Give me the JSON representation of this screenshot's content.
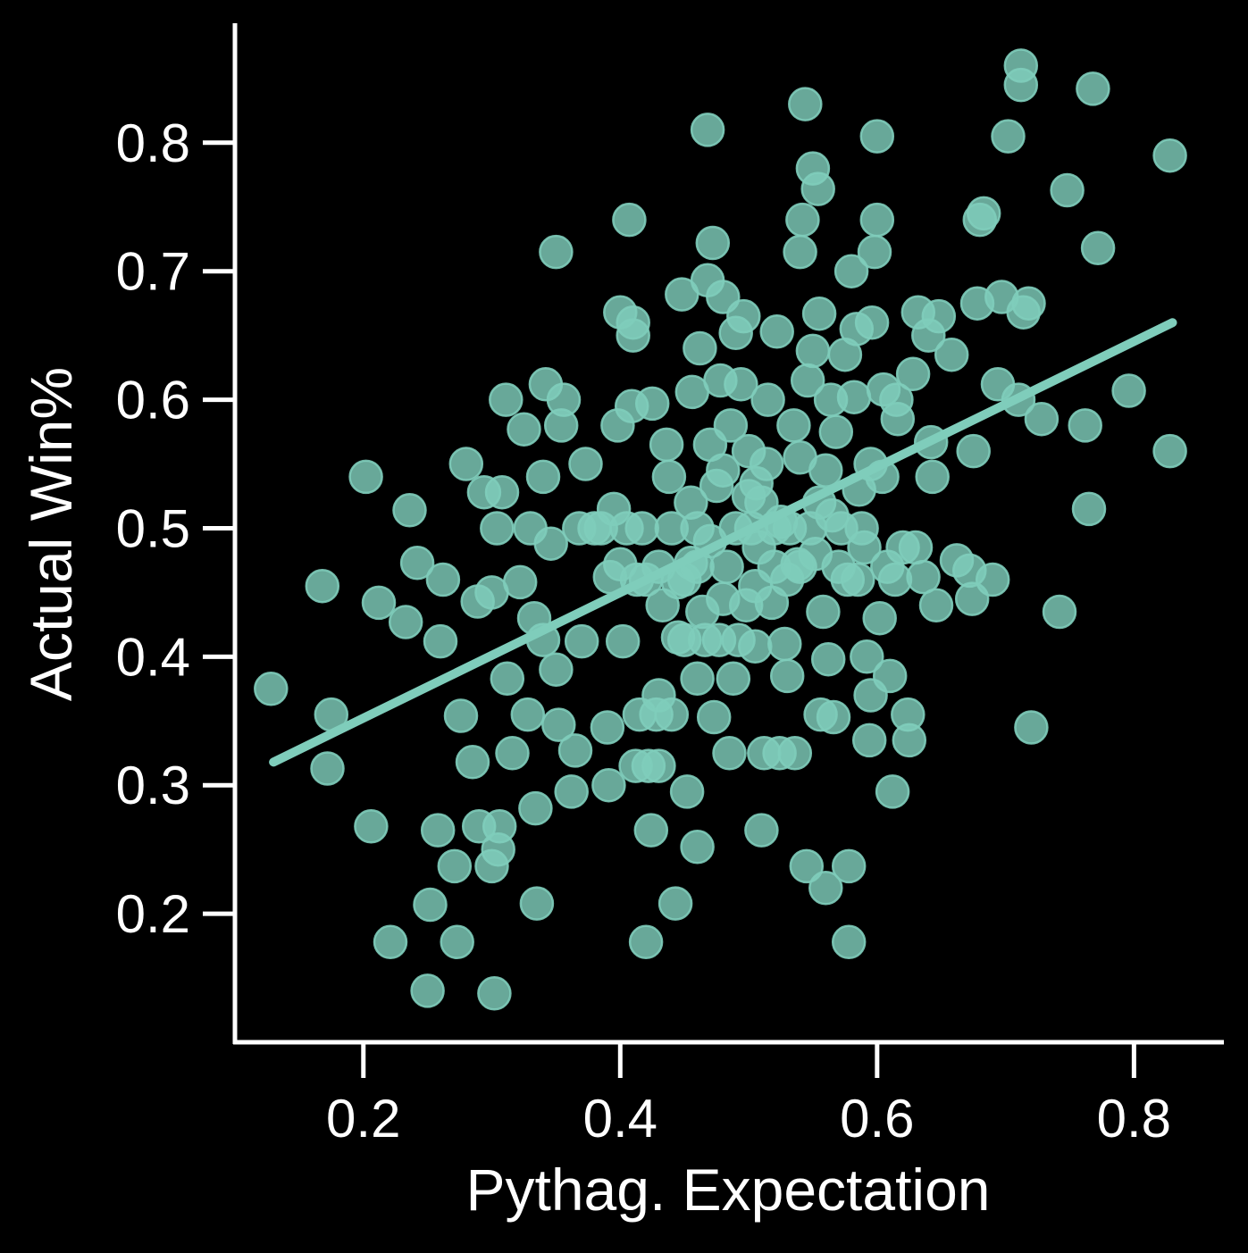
{
  "chart_data": {
    "type": "scatter",
    "title": "",
    "xlabel": "Pythag. Expectation",
    "ylabel": "Actual Win%",
    "xlim": [
      0.1,
      0.87
    ],
    "ylim": [
      0.1,
      0.893
    ],
    "xticks": [
      0.2,
      0.4,
      0.6,
      0.8
    ],
    "xtick_labels": [
      "0.2",
      "0.4",
      "0.6",
      "0.8"
    ],
    "yticks": [
      0.2,
      0.3,
      0.4,
      0.5,
      0.6,
      0.7,
      0.8
    ],
    "ytick_labels": [
      "0.2",
      "0.3",
      "0.4",
      "0.5",
      "0.6",
      "0.7",
      "0.8"
    ],
    "grid": false,
    "colors": {
      "background": "#000000",
      "axes": "#ffffff",
      "points": "#7fcdbb",
      "fit_line": "#7fcdbb"
    },
    "trendline": {
      "x": [
        0.13,
        0.83
      ],
      "y": [
        0.318,
        0.66
      ]
    },
    "series": [
      {
        "name": "teams",
        "points": [
          [
            0.128,
            0.375
          ],
          [
            0.168,
            0.455
          ],
          [
            0.175,
            0.355
          ],
          [
            0.172,
            0.313
          ],
          [
            0.202,
            0.54
          ],
          [
            0.206,
            0.268
          ],
          [
            0.212,
            0.442
          ],
          [
            0.221,
            0.178
          ],
          [
            0.233,
            0.427
          ],
          [
            0.236,
            0.514
          ],
          [
            0.242,
            0.473
          ],
          [
            0.252,
            0.207
          ],
          [
            0.25,
            0.14
          ],
          [
            0.258,
            0.265
          ],
          [
            0.26,
            0.412
          ],
          [
            0.262,
            0.46
          ],
          [
            0.271,
            0.237
          ],
          [
            0.273,
            0.178
          ],
          [
            0.276,
            0.354
          ],
          [
            0.28,
            0.55
          ],
          [
            0.285,
            0.318
          ],
          [
            0.289,
            0.443
          ],
          [
            0.29,
            0.268
          ],
          [
            0.294,
            0.528
          ],
          [
            0.3,
            0.45
          ],
          [
            0.3,
            0.237
          ],
          [
            0.302,
            0.138
          ],
          [
            0.304,
            0.5
          ],
          [
            0.305,
            0.25
          ],
          [
            0.306,
            0.268
          ],
          [
            0.308,
            0.528
          ],
          [
            0.311,
            0.6
          ],
          [
            0.312,
            0.383
          ],
          [
            0.316,
            0.325
          ],
          [
            0.322,
            0.458
          ],
          [
            0.325,
            0.577
          ],
          [
            0.328,
            0.355
          ],
          [
            0.33,
            0.5
          ],
          [
            0.333,
            0.43
          ],
          [
            0.334,
            0.282
          ],
          [
            0.335,
            0.208
          ],
          [
            0.34,
            0.413
          ],
          [
            0.34,
            0.54
          ],
          [
            0.342,
            0.612
          ],
          [
            0.346,
            0.488
          ],
          [
            0.35,
            0.39
          ],
          [
            0.35,
            0.715
          ],
          [
            0.352,
            0.347
          ],
          [
            0.354,
            0.58
          ],
          [
            0.356,
            0.6
          ],
          [
            0.362,
            0.295
          ],
          [
            0.365,
            0.327
          ],
          [
            0.368,
            0.5
          ],
          [
            0.37,
            0.412
          ],
          [
            0.373,
            0.55
          ],
          [
            0.38,
            0.5
          ],
          [
            0.385,
            0.5
          ],
          [
            0.39,
            0.345
          ],
          [
            0.391,
            0.3
          ],
          [
            0.392,
            0.462
          ],
          [
            0.395,
            0.515
          ],
          [
            0.398,
            0.58
          ],
          [
            0.4,
            0.668
          ],
          [
            0.4,
            0.472
          ],
          [
            0.402,
            0.412
          ],
          [
            0.405,
            0.5
          ],
          [
            0.407,
            0.74
          ],
          [
            0.409,
            0.595
          ],
          [
            0.41,
            0.66
          ],
          [
            0.41,
            0.65
          ],
          [
            0.412,
            0.315
          ],
          [
            0.413,
            0.46
          ],
          [
            0.415,
            0.355
          ],
          [
            0.417,
            0.5
          ],
          [
            0.42,
            0.46
          ],
          [
            0.42,
            0.178
          ],
          [
            0.422,
            0.315
          ],
          [
            0.424,
            0.265
          ],
          [
            0.425,
            0.597
          ],
          [
            0.428,
            0.355
          ],
          [
            0.43,
            0.37
          ],
          [
            0.43,
            0.47
          ],
          [
            0.43,
            0.315
          ],
          [
            0.433,
            0.44
          ],
          [
            0.436,
            0.565
          ],
          [
            0.438,
            0.54
          ],
          [
            0.44,
            0.355
          ],
          [
            0.44,
            0.5
          ],
          [
            0.443,
            0.208
          ],
          [
            0.445,
            0.458
          ],
          [
            0.448,
            0.682
          ],
          [
            0.45,
            0.413
          ],
          [
            0.45,
            0.46
          ],
          [
            0.452,
            0.295
          ],
          [
            0.455,
            0.473
          ],
          [
            0.456,
            0.606
          ],
          [
            0.46,
            0.5
          ],
          [
            0.46,
            0.252
          ],
          [
            0.46,
            0.383
          ],
          [
            0.462,
            0.64
          ],
          [
            0.464,
            0.435
          ],
          [
            0.466,
            0.413
          ],
          [
            0.468,
            0.81
          ],
          [
            0.468,
            0.693
          ],
          [
            0.47,
            0.565
          ],
          [
            0.472,
            0.722
          ],
          [
            0.473,
            0.353
          ],
          [
            0.475,
            0.533
          ],
          [
            0.477,
            0.413
          ],
          [
            0.478,
            0.615
          ],
          [
            0.48,
            0.545
          ],
          [
            0.48,
            0.68
          ],
          [
            0.483,
            0.47
          ],
          [
            0.485,
            0.325
          ],
          [
            0.486,
            0.58
          ],
          [
            0.488,
            0.383
          ],
          [
            0.49,
            0.5
          ],
          [
            0.49,
            0.652
          ],
          [
            0.492,
            0.413
          ],
          [
            0.494,
            0.612
          ],
          [
            0.496,
            0.665
          ],
          [
            0.498,
            0.44
          ],
          [
            0.5,
            0.525
          ],
          [
            0.502,
            0.5
          ],
          [
            0.505,
            0.408
          ],
          [
            0.506,
            0.535
          ],
          [
            0.508,
            0.485
          ],
          [
            0.51,
            0.265
          ],
          [
            0.512,
            0.325
          ],
          [
            0.514,
            0.55
          ],
          [
            0.515,
            0.6
          ],
          [
            0.518,
            0.442
          ],
          [
            0.52,
            0.5
          ],
          [
            0.522,
            0.653
          ],
          [
            0.524,
            0.325
          ],
          [
            0.528,
            0.41
          ],
          [
            0.53,
            0.385
          ],
          [
            0.532,
            0.5
          ],
          [
            0.535,
            0.58
          ],
          [
            0.536,
            0.325
          ],
          [
            0.538,
            0.472
          ],
          [
            0.54,
            0.555
          ],
          [
            0.54,
            0.715
          ],
          [
            0.542,
            0.74
          ],
          [
            0.544,
            0.83
          ],
          [
            0.545,
            0.237
          ],
          [
            0.546,
            0.615
          ],
          [
            0.548,
            0.5
          ],
          [
            0.55,
            0.638
          ],
          [
            0.55,
            0.78
          ],
          [
            0.552,
            0.48
          ],
          [
            0.554,
            0.764
          ],
          [
            0.555,
            0.667
          ],
          [
            0.556,
            0.355
          ],
          [
            0.558,
            0.435
          ],
          [
            0.56,
            0.545
          ],
          [
            0.56,
            0.22
          ],
          [
            0.562,
            0.398
          ],
          [
            0.564,
            0.6
          ],
          [
            0.566,
            0.353
          ],
          [
            0.568,
            0.575
          ],
          [
            0.57,
            0.47
          ],
          [
            0.572,
            0.5
          ],
          [
            0.575,
            0.635
          ],
          [
            0.577,
            0.46
          ],
          [
            0.578,
            0.237
          ],
          [
            0.578,
            0.178
          ],
          [
            0.58,
            0.7
          ],
          [
            0.582,
            0.602
          ],
          [
            0.584,
            0.655
          ],
          [
            0.586,
            0.53
          ],
          [
            0.588,
            0.5
          ],
          [
            0.59,
            0.485
          ],
          [
            0.592,
            0.4
          ],
          [
            0.594,
            0.335
          ],
          [
            0.595,
            0.37
          ],
          [
            0.596,
            0.66
          ],
          [
            0.598,
            0.715
          ],
          [
            0.6,
            0.805
          ],
          [
            0.6,
            0.74
          ],
          [
            0.602,
            0.43
          ],
          [
            0.604,
            0.54
          ],
          [
            0.605,
            0.608
          ],
          [
            0.608,
            0.47
          ],
          [
            0.61,
            0.385
          ],
          [
            0.612,
            0.295
          ],
          [
            0.614,
            0.46
          ],
          [
            0.616,
            0.585
          ],
          [
            0.62,
            0.485
          ],
          [
            0.624,
            0.355
          ],
          [
            0.625,
            0.335
          ],
          [
            0.628,
            0.62
          ],
          [
            0.63,
            0.485
          ],
          [
            0.632,
            0.668
          ],
          [
            0.636,
            0.462
          ],
          [
            0.64,
            0.65
          ],
          [
            0.642,
            0.567
          ],
          [
            0.643,
            0.54
          ],
          [
            0.646,
            0.44
          ],
          [
            0.648,
            0.665
          ],
          [
            0.658,
            0.635
          ],
          [
            0.662,
            0.475
          ],
          [
            0.672,
            0.467
          ],
          [
            0.674,
            0.445
          ],
          [
            0.675,
            0.56
          ],
          [
            0.678,
            0.675
          ],
          [
            0.68,
            0.74
          ],
          [
            0.683,
            0.745
          ],
          [
            0.69,
            0.46
          ],
          [
            0.694,
            0.612
          ],
          [
            0.697,
            0.68
          ],
          [
            0.702,
            0.805
          ],
          [
            0.71,
            0.6
          ],
          [
            0.712,
            0.86
          ],
          [
            0.712,
            0.845
          ],
          [
            0.714,
            0.668
          ],
          [
            0.718,
            0.675
          ],
          [
            0.72,
            0.345
          ],
          [
            0.728,
            0.585
          ],
          [
            0.742,
            0.435
          ],
          [
            0.748,
            0.763
          ],
          [
            0.762,
            0.58
          ],
          [
            0.765,
            0.515
          ],
          [
            0.768,
            0.842
          ],
          [
            0.772,
            0.718
          ],
          [
            0.796,
            0.607
          ],
          [
            0.828,
            0.79
          ],
          [
            0.828,
            0.56
          ],
          [
            0.52,
            0.47
          ],
          [
            0.53,
            0.46
          ],
          [
            0.47,
            0.49
          ],
          [
            0.455,
            0.52
          ],
          [
            0.505,
            0.455
          ],
          [
            0.54,
            0.47
          ],
          [
            0.565,
            0.51
          ],
          [
            0.585,
            0.46
          ],
          [
            0.46,
            0.47
          ],
          [
            0.445,
            0.415
          ],
          [
            0.5,
            0.56
          ],
          [
            0.51,
            0.52
          ],
          [
            0.525,
            0.505
          ],
          [
            0.555,
            0.52
          ],
          [
            0.595,
            0.55
          ],
          [
            0.615,
            0.6
          ],
          [
            0.48,
            0.445
          ]
        ]
      }
    ]
  }
}
